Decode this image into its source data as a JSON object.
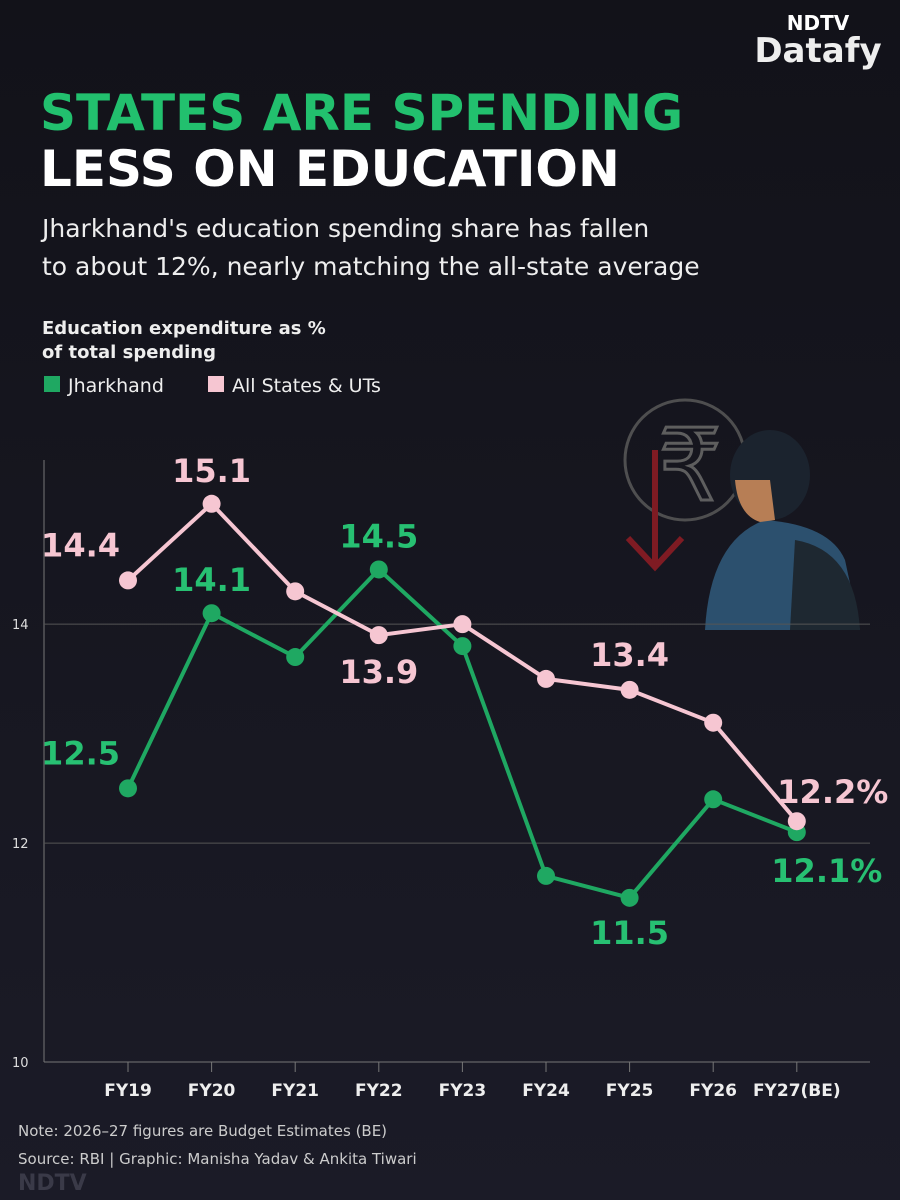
{
  "brand": {
    "logo_top": "NDTV",
    "logo_bottom": "Datafy",
    "footer": "NDTV"
  },
  "chart_data": {
    "type": "line",
    "title_line1": "STATES ARE SPENDING",
    "title_line2": "LESS ON EDUCATION",
    "subtitle_line1": "Jharkhand's education spending share has fallen",
    "subtitle_line2": "to about 12%, nearly matching the all-state average",
    "y_label_line1": "Education expenditure as %",
    "y_label_line2": "of total spending",
    "categories": [
      "FY19",
      "FY20",
      "FY21",
      "FY22",
      "FY23",
      "FY24",
      "FY25",
      "FY26",
      "FY27(BE)"
    ],
    "series": [
      {
        "name": "Jharkhand",
        "color": "#1fa862",
        "label_color": "#27c072",
        "values": [
          12.5,
          14.1,
          13.7,
          14.5,
          13.8,
          11.7,
          11.5,
          12.4,
          12.1
        ],
        "value_labels": [
          "12.5",
          "14.1",
          null,
          "14.5",
          null,
          null,
          "11.5",
          null,
          "12.1%"
        ]
      },
      {
        "name": "All States & UTs",
        "color": "#f6c6d2",
        "label_color": "#f6c6d2",
        "values": [
          14.4,
          15.1,
          14.3,
          13.9,
          14.0,
          13.5,
          13.4,
          13.1,
          12.2
        ],
        "value_labels": [
          "14.4",
          "15.1",
          null,
          "13.9",
          null,
          null,
          "13.4",
          null,
          "12.2%"
        ]
      }
    ],
    "ylim": [
      10,
      15.5
    ],
    "yticks": [
      10,
      12,
      14
    ],
    "grid": true,
    "note": "Note: 2026–27 figures are Budget Estimates (BE)",
    "source": "Source: RBI | Graphic: Manisha Yadav & Ankita Tiwari"
  }
}
